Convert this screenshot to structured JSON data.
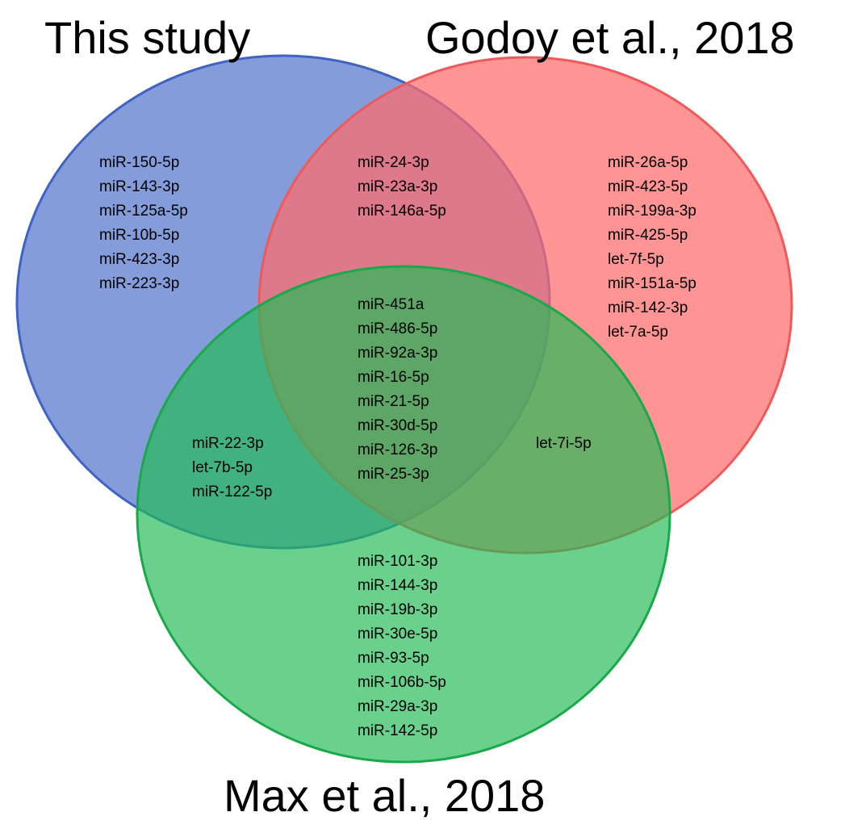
{
  "sets": [
    {
      "id": "this-study",
      "title": "This study",
      "fill": "#4a6fc8",
      "stroke": "#3f63c4",
      "fill_opacity": 0.68
    },
    {
      "id": "godoy",
      "title": "Godoy et al., 2018",
      "fill": "#ff6b6b",
      "stroke": "#ee5a5a",
      "fill_opacity": 0.72
    },
    {
      "id": "max",
      "title": "Max et al., 2018",
      "fill": "#22bb55",
      "stroke": "#1aa84a",
      "fill_opacity": 0.68
    }
  ],
  "regions": {
    "this_only": [
      "miR-150-5p",
      "miR-143-3p",
      "miR-125a-5p",
      "miR-10b-5p",
      "miR-423-3p",
      "miR-223-3p"
    ],
    "this_godoy": [
      "miR-24-3p",
      "miR-23a-3p",
      "miR-146a-5p"
    ],
    "godoy_only": [
      "miR-26a-5p",
      "miR-423-5p",
      "miR-199a-3p",
      "miR-425-5p",
      "let-7f-5p",
      "miR-151a-5p",
      "miR-142-3p",
      "let-7a-5p"
    ],
    "all_three": [
      "miR-451a",
      "miR-486-5p",
      "miR-92a-3p",
      "miR-16-5p",
      "miR-21-5p",
      "miR-30d-5p",
      "miR-126-3p",
      "miR-25-3p"
    ],
    "this_max": [
      "miR-22-3p",
      "let-7b-5p",
      "miR-122-5p"
    ],
    "godoy_max": [
      "let-7i-5p"
    ],
    "max_only": [
      "miR-101-3p",
      "miR-144-3p",
      "miR-19b-3p",
      "miR-30e-5p",
      "miR-93-5p",
      "miR-106b-5p",
      "miR-29a-3p",
      "miR-142-5p"
    ]
  }
}
